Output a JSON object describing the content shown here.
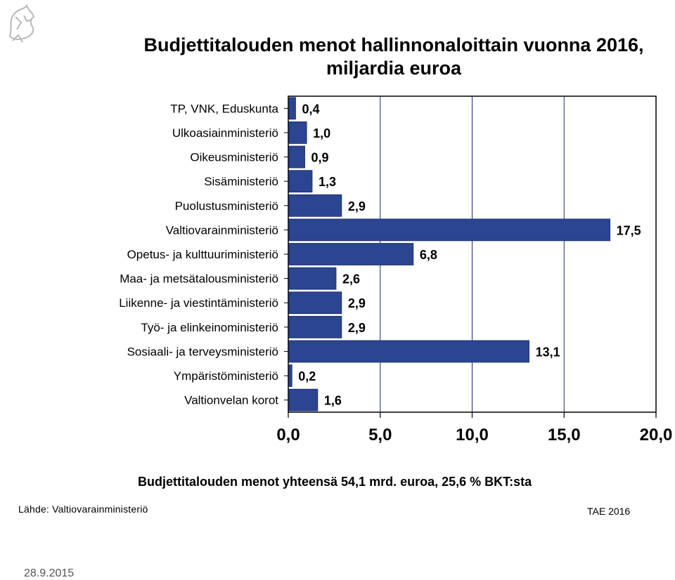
{
  "chart_data": {
    "type": "bar",
    "orientation": "horizontal",
    "title_line1": "Budjettitalouden menot hallinnonaloittain vuonna 2016,",
    "title_line2": "miljardia euroa",
    "categories": [
      "TP, VNK, Eduskunta",
      "Ulkoasiainministeriö",
      "Oikeusministeriö",
      "Sisäministeriö",
      "Puolustusministeriö",
      "Valtiovarainministeriö",
      "Opetus- ja kulttuuriministeriö",
      "Maa- ja metsätalousministeriö",
      "Liikenne- ja viestintäministeriö",
      "Työ- ja elinkeinoministeriö",
      "Sosiaali- ja terveysministeriö",
      "Ympäristöministeriö",
      "Valtionvelan korot"
    ],
    "values": [
      0.4,
      1.0,
      0.9,
      1.3,
      2.9,
      17.5,
      6.8,
      2.6,
      2.9,
      2.9,
      13.1,
      0.2,
      1.6
    ],
    "data_labels": [
      "0,4",
      "1,0",
      "0,9",
      "1,3",
      "2,9",
      "17,5",
      "6,8",
      "2,6",
      "2,9",
      "2,9",
      "13,1",
      "0,2",
      "1,6"
    ],
    "xlim": [
      0,
      20
    ],
    "x_ticks": [
      0,
      5,
      10,
      15,
      20
    ],
    "x_tick_labels": [
      "0,0",
      "5,0",
      "10,0",
      "15,0",
      "20,0"
    ],
    "grid": "vertical",
    "bar_color": "#2B4590"
  },
  "footer": {
    "total": "Budjettitalouden menot yhteensä 54,1 mrd. euroa, 25,6 % BKT:sta",
    "source": "Lähde: Valtiovarainministeriö",
    "tag": "TAE 2016",
    "date": "28.9.2015"
  },
  "logo": {
    "icon": "lion-emblem-icon"
  }
}
